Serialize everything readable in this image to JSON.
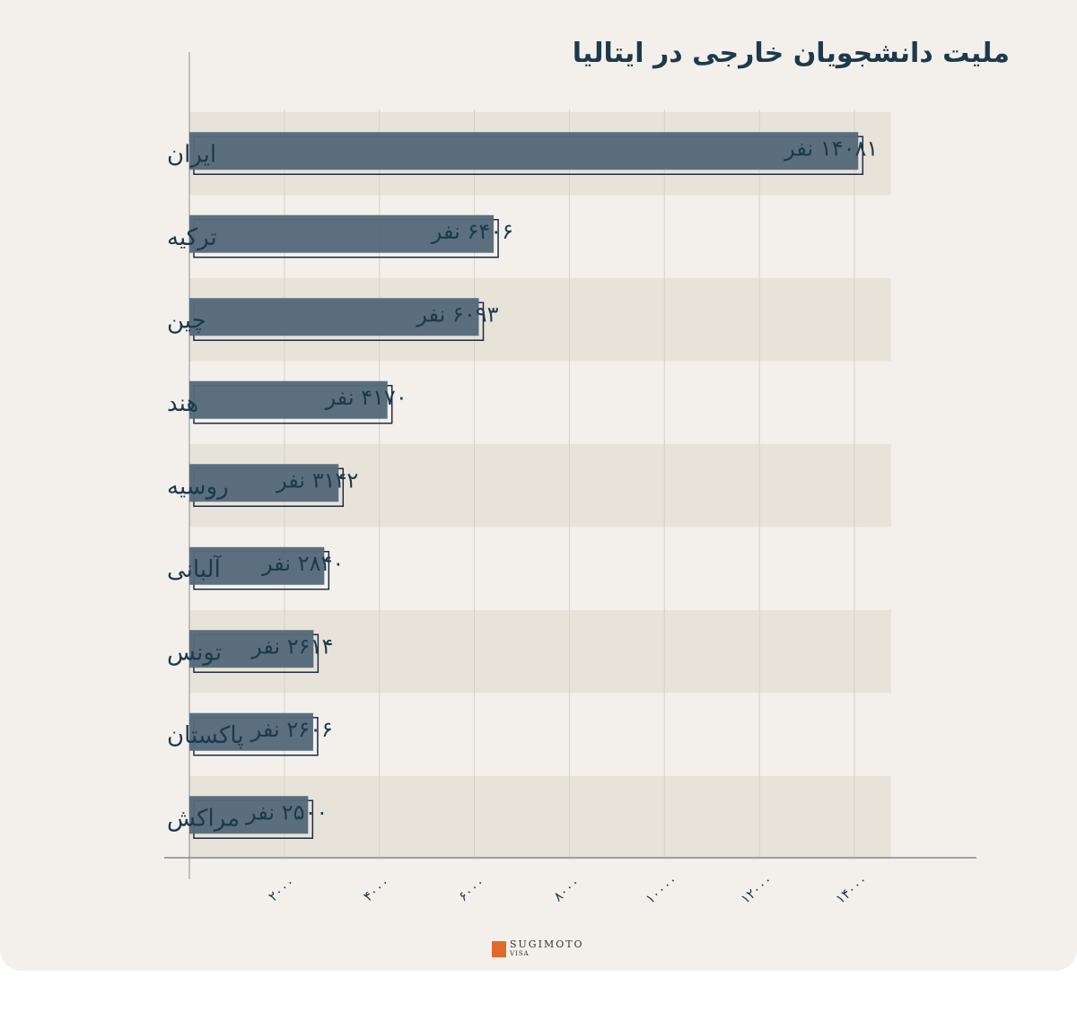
{
  "chart_data": {
    "type": "bar",
    "orientation": "horizontal",
    "title": "ملیت دانشجویان خارجی در ایتالیا",
    "categories": [
      "ایران",
      "ترکیه",
      "چین",
      "هند",
      "روسیه",
      "آلبانی",
      "تونس",
      "پاکستان",
      "مراکش"
    ],
    "values": [
      14081,
      6406,
      6093,
      4170,
      3142,
      2840,
      2614,
      2606,
      2500
    ],
    "data_labels": [
      "۱۴۰۸۱ نفر",
      "۶۴۰۶ نفر",
      "۶۰۹۳ نفر",
      "۴۱۷۰ نفر",
      "۳۱۴۲ نفر",
      "۲۸۴۰ نفر",
      "۲۶۱۴ نفر",
      "۲۶۰۶ نفر",
      "۲۵۰۰ نفر"
    ],
    "x_ticks": [
      2000,
      4000,
      6000,
      8000,
      10000,
      12000,
      14000
    ],
    "x_tick_labels": [
      "۲۰۰۰",
      "۴۰۰۰",
      "۶۰۰۰",
      "۸۰۰۰",
      "۱۰۰۰۰",
      "۱۲۰۰۰",
      "۱۴۰۰۰"
    ],
    "xlim": [
      0,
      15000
    ],
    "xlabel": "",
    "ylabel": "",
    "grid": true,
    "colors": {
      "bar": "#566a7b",
      "bar_outline": "#1e2a4a",
      "band": "#e8e3d8",
      "text": "#1d3a4c"
    }
  },
  "logo": {
    "name": "SUGIMOTO",
    "sub": "VISA"
  }
}
